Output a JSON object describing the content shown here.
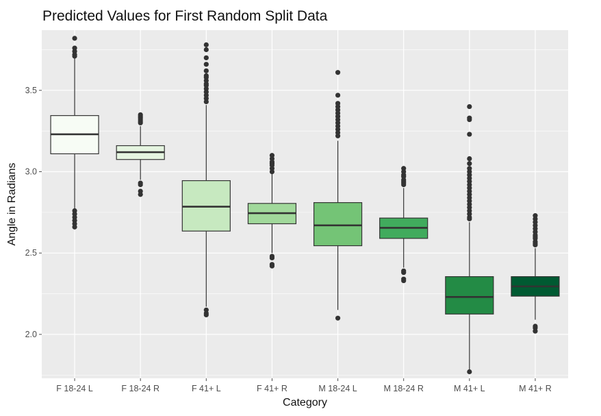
{
  "chart_data": {
    "type": "boxplot",
    "title": "Predicted Values for First Random Split Data",
    "xlabel": "Category",
    "ylabel": "Angle in Radians",
    "ylim": [
      1.73,
      3.87
    ],
    "yticks": [
      2.0,
      2.5,
      3.0,
      3.5
    ],
    "ytick_labels": [
      "2.0",
      "2.5",
      "3.0",
      "3.5"
    ],
    "grid": true,
    "legend": "none",
    "categories": [
      "F 18-24 L",
      "F 18-24 R",
      "F 41+ L",
      "F 41+ R",
      "M 18-24 L",
      "M 18-24 R",
      "M 41+ L",
      "M 41+ R"
    ],
    "boxes": [
      {
        "category": "F 18-24 L",
        "q1": 3.11,
        "median": 3.23,
        "q3": 3.345,
        "whisker_low": 2.77,
        "whisker_high": 3.7,
        "outliers": [
          3.82,
          3.76,
          3.74,
          3.72,
          3.71,
          2.76,
          2.74,
          2.72,
          2.7,
          2.68,
          2.66
        ],
        "fill": "#f7fcf5"
      },
      {
        "category": "F 18-24 R",
        "q1": 3.075,
        "median": 3.12,
        "q3": 3.16,
        "whisker_low": 2.95,
        "whisker_high": 3.28,
        "outliers": [
          3.35,
          3.34,
          3.33,
          3.32,
          3.31,
          3.3,
          2.93,
          2.92,
          2.88,
          2.86
        ],
        "fill": "#e5f5e0"
      },
      {
        "category": "F 41+ L",
        "q1": 2.635,
        "median": 2.785,
        "q3": 2.945,
        "whisker_low": 2.17,
        "whisker_high": 3.41,
        "outliers": [
          3.78,
          3.75,
          3.7,
          3.66,
          3.62,
          3.59,
          3.58,
          3.56,
          3.54,
          3.53,
          3.51,
          3.49,
          3.47,
          3.45,
          3.43,
          2.15,
          2.13,
          2.12
        ],
        "fill": "#c7e9c0"
      },
      {
        "category": "F 41+ R",
        "q1": 2.68,
        "median": 2.745,
        "q3": 2.805,
        "whisker_low": 2.5,
        "whisker_high": 2.99,
        "outliers": [
          3.1,
          3.08,
          3.06,
          3.05,
          3.04,
          3.02,
          3.0,
          2.48,
          2.47,
          2.43,
          2.42
        ],
        "fill": "#a1d99b"
      },
      {
        "category": "M 18-24 L",
        "q1": 2.545,
        "median": 2.67,
        "q3": 2.81,
        "whisker_low": 2.15,
        "whisker_high": 3.19,
        "outliers": [
          3.61,
          3.47,
          3.42,
          3.4,
          3.38,
          3.36,
          3.34,
          3.32,
          3.3,
          3.28,
          3.26,
          3.24,
          3.22,
          2.1
        ],
        "fill": "#74c476"
      },
      {
        "category": "M 18-24 R",
        "q1": 2.59,
        "median": 2.655,
        "q3": 2.715,
        "whisker_low": 2.41,
        "whisker_high": 2.9,
        "outliers": [
          3.02,
          3.0,
          2.98,
          2.97,
          2.95,
          2.94,
          2.93,
          2.92,
          2.39,
          2.38,
          2.34,
          2.33
        ],
        "fill": "#41ab5d"
      },
      {
        "category": "M 41+ L",
        "q1": 2.125,
        "median": 2.23,
        "q3": 2.355,
        "whisker_low": 1.78,
        "whisker_high": 2.69,
        "outliers": [
          3.4,
          3.33,
          3.32,
          3.23,
          3.08,
          3.05,
          3.02,
          3.0,
          2.98,
          2.96,
          2.94,
          2.92,
          2.9,
          2.88,
          2.86,
          2.84,
          2.82,
          2.8,
          2.78,
          2.76,
          2.74,
          2.72,
          2.71,
          1.77
        ],
        "fill": "#238b45"
      },
      {
        "category": "M 41+ R",
        "q1": 2.235,
        "median": 2.295,
        "q3": 2.355,
        "whisker_low": 2.09,
        "whisker_high": 2.53,
        "outliers": [
          2.73,
          2.71,
          2.69,
          2.67,
          2.65,
          2.63,
          2.61,
          2.6,
          2.59,
          2.57,
          2.56,
          2.55,
          2.05,
          2.04,
          2.02
        ],
        "fill": "#005a32"
      }
    ]
  },
  "colors": {
    "panel_bg": "#ebebeb",
    "grid_major": "#ffffff",
    "box_line": "#333333",
    "outlier": "#333333",
    "tick": "#4d4d4d"
  }
}
